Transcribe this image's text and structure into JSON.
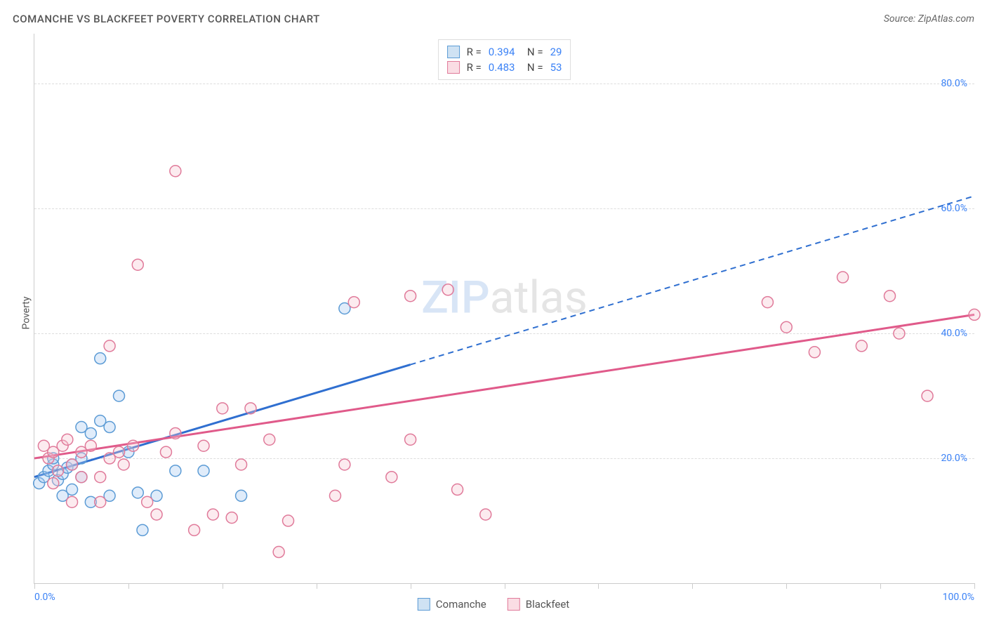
{
  "title": "COMANCHE VS BLACKFEET POVERTY CORRELATION CHART",
  "source": "Source: ZipAtlas.com",
  "ylabel": "Poverty",
  "watermark_bold": "ZIP",
  "watermark_rest": "atlas",
  "chart": {
    "type": "scatter",
    "xlim": [
      0,
      100
    ],
    "ylim": [
      0,
      88
    ],
    "yticks": [
      20,
      40,
      60,
      80
    ],
    "ytick_labels": [
      "20.0%",
      "40.0%",
      "60.0%",
      "80.0%"
    ],
    "xtick_positions": [
      0,
      10,
      20,
      30,
      40,
      50,
      60,
      70,
      80,
      90,
      100
    ],
    "xtick_label_left": "0.0%",
    "xtick_label_right": "100.0%",
    "grid_color": "#dddddd",
    "axis_color": "#cccccc",
    "background_color": "#ffffff",
    "marker_radius": 8,
    "series": [
      {
        "name": "Comanche",
        "color_fill": "#a5c8f0",
        "color_stroke": "#5b9bd5",
        "swatch_fill": "#cfe2f3",
        "swatch_border": "#5b9bd5",
        "R": "0.394",
        "N": "29",
        "trend": {
          "x1": 0,
          "y1": 17,
          "x2": 40,
          "y2": 35,
          "x2_ext": 100,
          "y2_ext": 62,
          "stroke": "#2f6fd0",
          "width": 3
        },
        "points": [
          [
            0.5,
            16
          ],
          [
            1,
            17
          ],
          [
            1.5,
            18
          ],
          [
            2,
            19
          ],
          [
            2,
            20
          ],
          [
            2.5,
            16.5
          ],
          [
            3,
            17.5
          ],
          [
            3,
            14
          ],
          [
            3.5,
            18.5
          ],
          [
            4,
            19
          ],
          [
            4,
            15
          ],
          [
            5,
            17
          ],
          [
            5,
            25
          ],
          [
            5,
            20
          ],
          [
            6,
            13
          ],
          [
            6,
            24
          ],
          [
            7,
            26
          ],
          [
            7,
            36
          ],
          [
            8,
            14
          ],
          [
            8,
            25
          ],
          [
            9,
            30
          ],
          [
            10,
            21
          ],
          [
            11,
            14.5
          ],
          [
            11.5,
            8.5
          ],
          [
            13,
            14
          ],
          [
            15,
            18
          ],
          [
            18,
            18
          ],
          [
            22,
            14
          ],
          [
            33,
            44
          ]
        ]
      },
      {
        "name": "Blackfeet",
        "color_fill": "#f6c5d0",
        "color_stroke": "#e07a9a",
        "swatch_fill": "#fadde4",
        "swatch_border": "#e07a9a",
        "R": "0.483",
        "N": "53",
        "trend": {
          "x1": 0,
          "y1": 20,
          "x2": 100,
          "y2": 43,
          "stroke": "#e05a8a",
          "width": 3
        },
        "points": [
          [
            1,
            22
          ],
          [
            1.5,
            20
          ],
          [
            2,
            21
          ],
          [
            2,
            16
          ],
          [
            2.5,
            18
          ],
          [
            3,
            22
          ],
          [
            3.5,
            23
          ],
          [
            4,
            19
          ],
          [
            4,
            13
          ],
          [
            5,
            17
          ],
          [
            5,
            21
          ],
          [
            6,
            22
          ],
          [
            7,
            17
          ],
          [
            7,
            13
          ],
          [
            8,
            20
          ],
          [
            8,
            38
          ],
          [
            9,
            21
          ],
          [
            9.5,
            19
          ],
          [
            10.5,
            22
          ],
          [
            11,
            51
          ],
          [
            12,
            13
          ],
          [
            13,
            11
          ],
          [
            14,
            21
          ],
          [
            15,
            66
          ],
          [
            15,
            24
          ],
          [
            17,
            8.5
          ],
          [
            18,
            22
          ],
          [
            19,
            11
          ],
          [
            20,
            28
          ],
          [
            21,
            10.5
          ],
          [
            22,
            19
          ],
          [
            23,
            28
          ],
          [
            25,
            23
          ],
          [
            26,
            5
          ],
          [
            27,
            10
          ],
          [
            32,
            14
          ],
          [
            33,
            19
          ],
          [
            34,
            45
          ],
          [
            38,
            17
          ],
          [
            40,
            46
          ],
          [
            40,
            23
          ],
          [
            44,
            47
          ],
          [
            45,
            15
          ],
          [
            48,
            11
          ],
          [
            78,
            45
          ],
          [
            80,
            41
          ],
          [
            83,
            37
          ],
          [
            86,
            49
          ],
          [
            88,
            38
          ],
          [
            91,
            46
          ],
          [
            92,
            40
          ],
          [
            95,
            30
          ],
          [
            100,
            43
          ]
        ]
      }
    ]
  },
  "legend_bottom": [
    {
      "label": "Comanche",
      "fill": "#cfe2f3",
      "border": "#5b9bd5"
    },
    {
      "label": "Blackfeet",
      "fill": "#fadde4",
      "border": "#e07a9a"
    }
  ]
}
